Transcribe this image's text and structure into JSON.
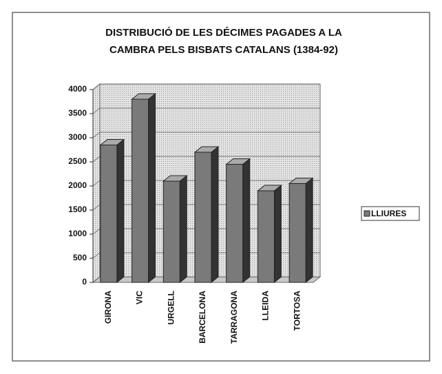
{
  "chart_data": {
    "type": "bar3d",
    "title": [
      "DISTRIBUCIÓ DE LES DÉCIMES PAGADES A LA",
      "CAMBRA  PELS BISBATS CATALANS (1384-92)"
    ],
    "categories": [
      "GIRONA",
      "VIC",
      "URGELL",
      "BARCELONA",
      "TARRAGONA",
      "LLEIDA",
      "TORTOSA"
    ],
    "series": [
      {
        "name": "LLIURES",
        "color": "#7a7a7a",
        "values": [
          2850,
          3800,
          2100,
          2700,
          2450,
          1900,
          2050
        ]
      }
    ],
    "ylim": [
      0,
      4000
    ],
    "yticks": [
      0,
      500,
      1000,
      1500,
      2000,
      2500,
      3000,
      3500,
      4000
    ],
    "grid": true,
    "legend": "right"
  }
}
